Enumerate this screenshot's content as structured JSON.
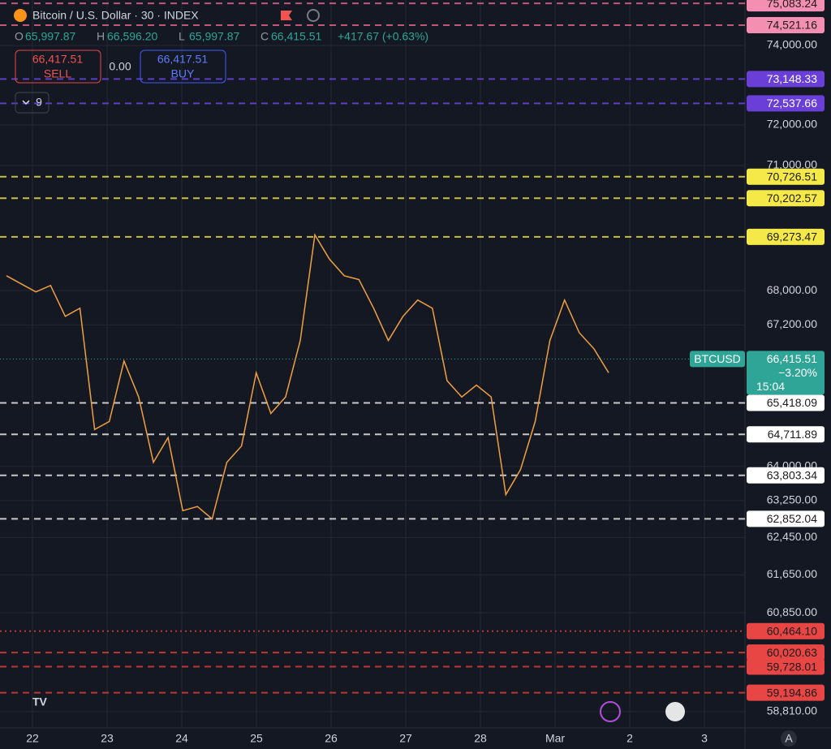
{
  "header": {
    "symbol": "Bitcoin / U.S. Dollar · 30 · INDEX",
    "ohlc": [
      {
        "key": "O",
        "value": "65,997.87"
      },
      {
        "key": "H",
        "value": "66,596.20"
      },
      {
        "key": "L",
        "value": "65,997.87"
      },
      {
        "key": "C",
        "value": "66,415.51"
      }
    ],
    "change": "+417.67 (+0.63%)"
  },
  "trade": {
    "sell_price": "66,417.51",
    "sell_label": "SELL",
    "spread": "0.00",
    "buy_price": "66,417.51",
    "buy_label": "BUY"
  },
  "indicators_count": "9",
  "scale_button": "A",
  "chart_data": {
    "type": "line",
    "log_scale": true,
    "grid": true,
    "x_labels": [
      "22",
      "23",
      "24",
      "25",
      "26",
      "27",
      "28",
      "Mar",
      "2",
      "3"
    ],
    "series": [
      {
        "name": "BTCUSD",
        "color": "#f0a040",
        "values": [
          68350,
          68160,
          67970,
          68120,
          67400,
          67590,
          64820,
          65000,
          66370,
          65550,
          64090,
          64640,
          63030,
          63120,
          62850,
          64090,
          64450,
          66100,
          65180,
          65550,
          66840,
          69320,
          68740,
          68350,
          68260,
          67590,
          66840,
          67400,
          67780,
          67590,
          65920,
          65550,
          65820,
          65550,
          63380,
          63930,
          65000,
          66840,
          67780,
          67020,
          66650,
          66100
        ]
      }
    ],
    "ylim": [
      58480,
      75170
    ],
    "yticks": [
      {
        "value": 74000,
        "label": "74,000.00"
      },
      {
        "value": 72000,
        "label": "72,000.00"
      },
      {
        "value": 71000,
        "label": "71,000.00"
      },
      {
        "value": 68000,
        "label": "68,000.00"
      },
      {
        "value": 67200,
        "label": "67,200.00"
      },
      {
        "value": 64000,
        "label": "64,000.00"
      },
      {
        "value": 63250,
        "label": "63,250.00"
      },
      {
        "value": 62450,
        "label": "62,450.00"
      },
      {
        "value": 61650,
        "label": "61,650.00"
      },
      {
        "value": 60850,
        "label": "60,850.00"
      },
      {
        "value": 58810,
        "label": "58,810.00"
      }
    ],
    "levels": [
      {
        "value": 75083.24,
        "label": "75,083.24",
        "color": "#f48fb1",
        "text_color": "#1b1b1b",
        "line": "#c2577a",
        "dash": "8 6"
      },
      {
        "value": 74521.16,
        "label": "74,521.16",
        "color": "#f48fb1",
        "text_color": "#1b1b1b",
        "line": "#c2577a",
        "dash": "8 6"
      },
      {
        "value": 73148.33,
        "label": "73,148.33",
        "color": "#6a3fd8",
        "text_color": "#ffffff",
        "line": "#5a3fc0",
        "dash": "8 6"
      },
      {
        "value": 72537.66,
        "label": "72,537.66",
        "color": "#6a3fd8",
        "text_color": "#ffffff",
        "line": "#5a3fc0",
        "dash": "8 6"
      },
      {
        "value": 70726.51,
        "label": "70,726.51",
        "color": "#f5e94a",
        "text_color": "#1b1b1b",
        "line": "#c8c040",
        "dash": "8 6"
      },
      {
        "value": 70202.57,
        "label": "70,202.57",
        "color": "#f5e94a",
        "text_color": "#1b1b1b",
        "line": "#c8c040",
        "dash": "8 6"
      },
      {
        "value": 69273.47,
        "label": "69,273.47",
        "color": "#f5e94a",
        "text_color": "#1b1b1b",
        "line": "#c8c040",
        "dash": "8 6"
      },
      {
        "value": 65418.09,
        "label": "65,418.09",
        "color": "#ffffff",
        "text_color": "#1b1b1b",
        "line": "#c8c8c8",
        "dash": "8 6"
      },
      {
        "value": 64711.89,
        "label": "64,711.89",
        "color": "#ffffff",
        "text_color": "#1b1b1b",
        "line": "#c8c8c8",
        "dash": "8 6"
      },
      {
        "value": 63803.34,
        "label": "63,803.34",
        "color": "#ffffff",
        "text_color": "#1b1b1b",
        "line": "#c8c8c8",
        "dash": "8 6"
      },
      {
        "value": 62852.04,
        "label": "62,852.04",
        "color": "#ffffff",
        "text_color": "#1b1b1b",
        "line": "#c8c8c8",
        "dash": "8 6"
      },
      {
        "value": 60464.1,
        "label": "60,464.10",
        "color": "#e84545",
        "text_color": "#1b1b1b",
        "line": "#c03535",
        "dash": "2 4"
      },
      {
        "value": 60020.63,
        "label": "60,020.63",
        "color": "#e84545",
        "text_color": "#1b1b1b",
        "line": "#c03535",
        "dash": "8 6"
      },
      {
        "value": 59728.01,
        "label": "59,728.01",
        "color": "#e84545",
        "text_color": "#1b1b1b",
        "line": "#c03535",
        "dash": "8 6"
      },
      {
        "value": 59194.86,
        "label": "59,194.86",
        "color": "#e84545",
        "text_color": "#1b1b1b",
        "line": "#c03535",
        "dash": "8 6"
      }
    ],
    "last_price": {
      "value": 66415.51,
      "label": "66,415.51",
      "symbol": "BTCUSD",
      "change": "−3.20%",
      "countdown": "15:04",
      "color": "#2ea597"
    }
  }
}
